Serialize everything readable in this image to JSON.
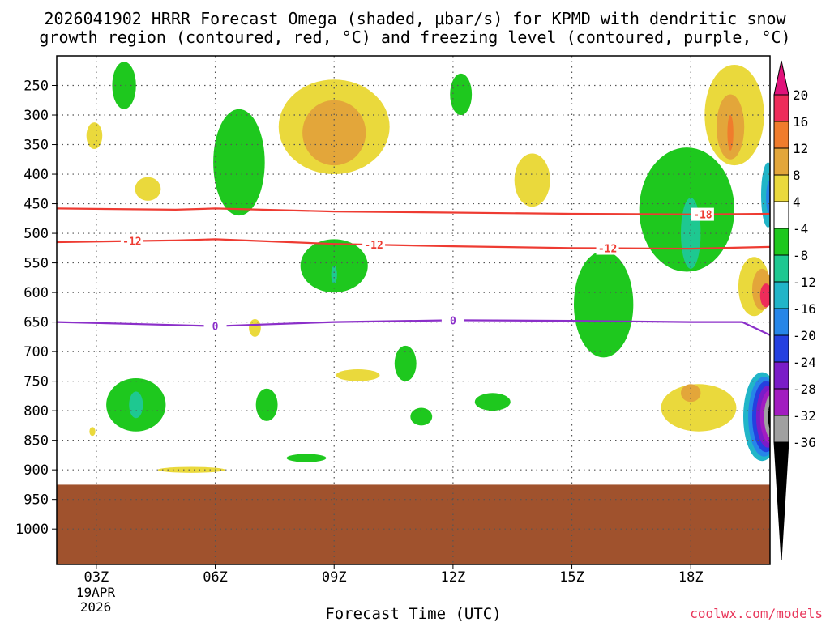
{
  "chart_data": {
    "type": "heatmap",
    "title_line1": "2026041902 HRRR Forecast Omega (shaded, μbar/s) for KPMD with dendritic snow",
    "title_line2": "growth region (contoured, red, °C) and freezing level (contoured, purple, °C)",
    "xlabel": "Forecast Time (UTC)",
    "date_label": [
      "19APR",
      "2026"
    ],
    "credit": "coolwx.com/models",
    "x_range_hours": [
      2.0,
      20.0
    ],
    "y_range_hpa": [
      200,
      1060
    ],
    "x_ticks": [
      {
        "hour": 3,
        "label": "03Z"
      },
      {
        "hour": 6,
        "label": "06Z"
      },
      {
        "hour": 9,
        "label": "09Z"
      },
      {
        "hour": 12,
        "label": "12Z"
      },
      {
        "hour": 15,
        "label": "15Z"
      },
      {
        "hour": 18,
        "label": "18Z"
      }
    ],
    "y_ticks": [
      250,
      300,
      350,
      400,
      450,
      500,
      550,
      600,
      650,
      700,
      750,
      800,
      850,
      900,
      950,
      1000
    ],
    "ground_top_hpa": 925,
    "colors": {
      "ground": "#a0522d",
      "red_contour": "#ee3b32",
      "purple_contour": "#8b2fc9",
      "grid": "#555555",
      "frame": "#000000"
    },
    "colorbar": {
      "levels": [
        20,
        16,
        12,
        8,
        4,
        -4,
        -8,
        -12,
        -16,
        -20,
        -24,
        -28,
        -32,
        -36
      ],
      "colors": [
        "#ee2c5a",
        "#f07c2c",
        "#e3a63a",
        "#ead93c",
        "#ffffff",
        "#1ec81e",
        "#1ec891",
        "#21b5c8",
        "#2686e8",
        "#2440e0",
        "#7a1cc8",
        "#a21cc0",
        "#a0a0a0"
      ],
      "top_color": "#e0127a",
      "bottom_color": "#000000"
    },
    "contours": [
      {
        "name": "dendritic-top-contour",
        "label": "-18",
        "color": "#ee3b32",
        "x": [
          2.0,
          5,
          6,
          9,
          12,
          15,
          18,
          20.0
        ],
        "y": [
          458,
          460,
          458,
          463,
          465,
          467,
          468,
          467
        ],
        "label_hour": 18.3
      },
      {
        "name": "dendritic-bottom-contour",
        "label": "-12",
        "color": "#ee3b32",
        "x": [
          2.0,
          5,
          6,
          9,
          12,
          15,
          18,
          20.0
        ],
        "y": [
          515,
          512,
          510,
          518,
          522,
          525,
          526,
          523
        ],
        "label_hours": [
          3.9,
          10.0,
          15.9
        ]
      },
      {
        "name": "freezing-level-contour",
        "label": "0",
        "color": "#8b2fc9",
        "x": [
          2.0,
          5,
          6,
          9,
          12,
          15,
          18,
          19.3,
          20.0
        ],
        "y": [
          650,
          655,
          657,
          650,
          647,
          648,
          650,
          650,
          672
        ],
        "label_hours": [
          6.0,
          12.0
        ]
      }
    ],
    "omega_regions": [
      {
        "class": "-4 to -8",
        "color": "#1ec81e",
        "hour": 3.7,
        "hpa": 250,
        "w_hours": 0.6,
        "h_hpa": 80
      },
      {
        "class": "-4 to -8",
        "color": "#1ec81e",
        "hour": 6.6,
        "hpa": 380,
        "w_hours": 1.3,
        "h_hpa": 180
      },
      {
        "class": "-4 to -8",
        "color": "#1ec81e",
        "hour": 9.0,
        "hpa": 555,
        "w_hours": 1.7,
        "h_hpa": 90
      },
      {
        "class": "-4 to -8",
        "color": "#1ec81e",
        "hour": 12.2,
        "hpa": 265,
        "w_hours": 0.55,
        "h_hpa": 70
      },
      {
        "class": "-4 to -8",
        "color": "#1ec81e",
        "hour": 4.0,
        "hpa": 790,
        "w_hours": 1.5,
        "h_hpa": 90
      },
      {
        "class": "-4 to -8",
        "color": "#1ec81e",
        "hour": 7.3,
        "hpa": 790,
        "w_hours": 0.55,
        "h_hpa": 55
      },
      {
        "class": "-4 to -8",
        "color": "#1ec81e",
        "hour": 10.8,
        "hpa": 720,
        "w_hours": 0.55,
        "h_hpa": 60
      },
      {
        "class": "-4 to -8",
        "color": "#1ec81e",
        "hour": 11.2,
        "hpa": 810,
        "w_hours": 0.55,
        "h_hpa": 30
      },
      {
        "class": "-4 to -8",
        "color": "#1ec81e",
        "hour": 8.3,
        "hpa": 880,
        "w_hours": 1.0,
        "h_hpa": 14
      },
      {
        "class": "-4 to -8",
        "color": "#1ec81e",
        "hour": 13.0,
        "hpa": 785,
        "w_hours": 0.9,
        "h_hpa": 30
      },
      {
        "class": "-4 to -8",
        "color": "#1ec81e",
        "hour": 15.8,
        "hpa": 620,
        "w_hours": 1.5,
        "h_hpa": 180
      },
      {
        "class": "-4 to -8",
        "color": "#1ec81e",
        "hour": 17.9,
        "hpa": 460,
        "w_hours": 2.4,
        "h_hpa": 210
      },
      {
        "class": "-8 to -12",
        "color": "#1ec891",
        "hour": 4.0,
        "hpa": 790,
        "w_hours": 0.35,
        "h_hpa": 45
      },
      {
        "class": "-8 to -12",
        "color": "#1ec891",
        "hour": 9.0,
        "hpa": 570,
        "w_hours": 0.15,
        "h_hpa": 30
      },
      {
        "class": "-8 to -12",
        "color": "#1ec891",
        "hour": 18.0,
        "hpa": 500,
        "w_hours": 0.5,
        "h_hpa": 120
      },
      {
        "class": "4 to 8",
        "color": "#ead93c",
        "hour": 9.0,
        "hpa": 320,
        "w_hours": 2.8,
        "h_hpa": 160
      },
      {
        "class": "4 to 8",
        "color": "#ead93c",
        "hour": 14.0,
        "hpa": 410,
        "w_hours": 0.9,
        "h_hpa": 90
      },
      {
        "class": "4 to 8",
        "color": "#ead93c",
        "hour": 19.1,
        "hpa": 300,
        "w_hours": 1.5,
        "h_hpa": 170
      },
      {
        "class": "4 to 8",
        "color": "#ead93c",
        "hour": 2.95,
        "hpa": 335,
        "w_hours": 0.4,
        "h_hpa": 45
      },
      {
        "class": "4 to 8",
        "color": "#ead93c",
        "hour": 4.3,
        "hpa": 425,
        "w_hours": 0.65,
        "h_hpa": 40
      },
      {
        "class": "4 to 8",
        "color": "#ead93c",
        "hour": 7.0,
        "hpa": 660,
        "w_hours": 0.3,
        "h_hpa": 30
      },
      {
        "class": "4 to 8",
        "color": "#ead93c",
        "hour": 9.6,
        "hpa": 740,
        "w_hours": 1.1,
        "h_hpa": 20
      },
      {
        "class": "4 to 8",
        "color": "#ead93c",
        "hour": 5.4,
        "hpa": 900,
        "w_hours": 1.7,
        "h_hpa": 10
      },
      {
        "class": "4 to 8",
        "color": "#ead93c",
        "hour": 2.9,
        "hpa": 835,
        "w_hours": 0.15,
        "h_hpa": 15
      },
      {
        "class": "4 to 8",
        "color": "#ead93c",
        "hour": 18.2,
        "hpa": 795,
        "w_hours": 1.9,
        "h_hpa": 80
      },
      {
        "class": "4 to 8",
        "color": "#ead93c",
        "hour": 19.6,
        "hpa": 590,
        "w_hours": 0.8,
        "h_hpa": 100
      },
      {
        "class": "8 to 12",
        "color": "#e3a63a",
        "hour": 9.0,
        "hpa": 330,
        "w_hours": 1.6,
        "h_hpa": 110
      },
      {
        "class": "8 to 12",
        "color": "#e3a63a",
        "hour": 19.0,
        "hpa": 320,
        "w_hours": 0.7,
        "h_hpa": 110
      },
      {
        "class": "8 to 12",
        "color": "#e3a63a",
        "hour": 18.0,
        "hpa": 770,
        "w_hours": 0.5,
        "h_hpa": 30
      },
      {
        "class": "8 to 12",
        "color": "#e3a63a",
        "hour": 19.8,
        "hpa": 595,
        "w_hours": 0.5,
        "h_hpa": 70
      },
      {
        "class": "12 to 16",
        "color": "#f07c2c",
        "hour": 19.0,
        "hpa": 330,
        "w_hours": 0.15,
        "h_hpa": 60
      },
      {
        "class": "16 to 20",
        "color": "#ee2c5a",
        "hour": 19.9,
        "hpa": 605,
        "w_hours": 0.3,
        "h_hpa": 40
      },
      {
        "class": "-12 to -16",
        "color": "#21b5c8",
        "hour": 19.95,
        "hpa": 435,
        "w_hours": 0.35,
        "h_hpa": 110
      },
      {
        "class": "-16 to -20",
        "color": "#2686e8",
        "hour": 20.0,
        "hpa": 440,
        "w_hours": 0.2,
        "h_hpa": 60
      },
      {
        "class": "-12 to -16",
        "color": "#21b5c8",
        "hour": 19.8,
        "hpa": 810,
        "w_hours": 0.95,
        "h_hpa": 150
      },
      {
        "class": "-16 to -20",
        "color": "#2686e8",
        "hour": 19.85,
        "hpa": 810,
        "w_hours": 0.8,
        "h_hpa": 135
      },
      {
        "class": "-20 to -24",
        "color": "#2440e0",
        "hour": 19.9,
        "hpa": 810,
        "w_hours": 0.7,
        "h_hpa": 120
      },
      {
        "class": "-24 to -28",
        "color": "#7a1cc8",
        "hour": 19.95,
        "hpa": 810,
        "w_hours": 0.6,
        "h_hpa": 105
      },
      {
        "class": "-28 to -32",
        "color": "#a21cc0",
        "hour": 20.0,
        "hpa": 810,
        "w_hours": 0.5,
        "h_hpa": 90
      },
      {
        "class": "-32 to -36",
        "color": "#a0a0a0",
        "hour": 20.05,
        "hpa": 810,
        "w_hours": 0.4,
        "h_hpa": 75
      },
      {
        "class": "< -36",
        "color": "#000000",
        "hour": 20.1,
        "hpa": 810,
        "w_hours": 0.3,
        "h_hpa": 60
      }
    ]
  }
}
